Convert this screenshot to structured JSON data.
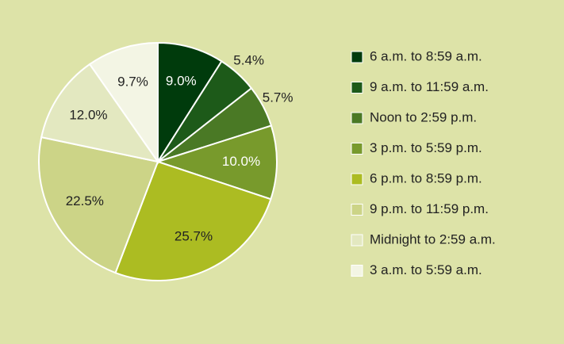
{
  "chart_data": {
    "type": "pie",
    "categories": [
      "6 a.m. to 8:59 a.m.",
      "9 a.m. to 11:59 a.m.",
      "Noon to 2:59 p.m.",
      "3 p.m. to 5:59 p.m.",
      "6 p.m. to 8:59 p.m.",
      "9 p.m. to 11:59 p.m.",
      "Midnight to 2:59 a.m.",
      "3 a.m. to 5:59 a.m."
    ],
    "values": [
      9.0,
      5.4,
      5.7,
      10.0,
      25.7,
      22.5,
      12.0,
      9.7
    ],
    "value_labels": [
      "9.0%",
      "5.4%",
      "5.7%",
      "10.0%",
      "25.7%",
      "22.5%",
      "12.0%",
      "9.7%"
    ],
    "colors": [
      "#003b0c",
      "#1d5a19",
      "#4a7925",
      "#789a2c",
      "#acbc22",
      "#ccd487",
      "#e3e8c0",
      "#f3f5e4"
    ]
  }
}
